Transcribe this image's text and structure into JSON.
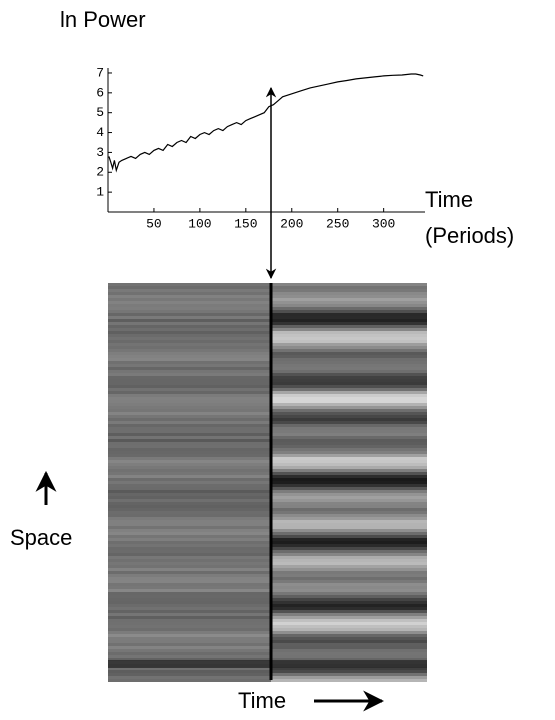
{
  "chart_data": [
    {
      "type": "line",
      "title": "ln Power",
      "xlabel": [
        "Time",
        "(Periods)"
      ],
      "x": [
        1,
        3,
        5,
        7,
        9,
        12,
        15,
        20,
        25,
        30,
        35,
        40,
        45,
        50,
        55,
        60,
        65,
        70,
        75,
        80,
        85,
        90,
        95,
        100,
        105,
        110,
        115,
        120,
        125,
        130,
        135,
        140,
        145,
        150,
        155,
        160,
        165,
        170,
        175,
        180,
        185,
        190,
        200,
        210,
        220,
        230,
        240,
        250,
        260,
        270,
        280,
        290,
        300,
        310,
        320,
        330,
        335,
        340,
        343
      ],
      "values": [
        2.8,
        2.5,
        2.2,
        2.6,
        2.1,
        2.5,
        2.6,
        2.7,
        2.8,
        2.7,
        2.9,
        3.0,
        2.9,
        3.1,
        3.2,
        3.1,
        3.4,
        3.3,
        3.5,
        3.6,
        3.5,
        3.8,
        3.7,
        3.9,
        4.0,
        3.9,
        4.1,
        4.2,
        4.1,
        4.3,
        4.4,
        4.5,
        4.4,
        4.6,
        4.7,
        4.8,
        4.9,
        5.0,
        5.3,
        5.4,
        5.6,
        5.8,
        5.95,
        6.1,
        6.25,
        6.35,
        6.45,
        6.55,
        6.62,
        6.7,
        6.75,
        6.8,
        6.85,
        6.88,
        6.9,
        6.95,
        6.95,
        6.9,
        6.85
      ],
      "color": "#000000",
      "xlim": [
        0,
        345
      ],
      "xticks": [
        50,
        100,
        150,
        200,
        250,
        300
      ],
      "ylim": [
        0,
        7.25
      ],
      "yticks": [
        1,
        2,
        3,
        4,
        5,
        6,
        7
      ]
    },
    {
      "type": "image",
      "xlabel": "Time",
      "ylabel": "Space"
    }
  ]
}
